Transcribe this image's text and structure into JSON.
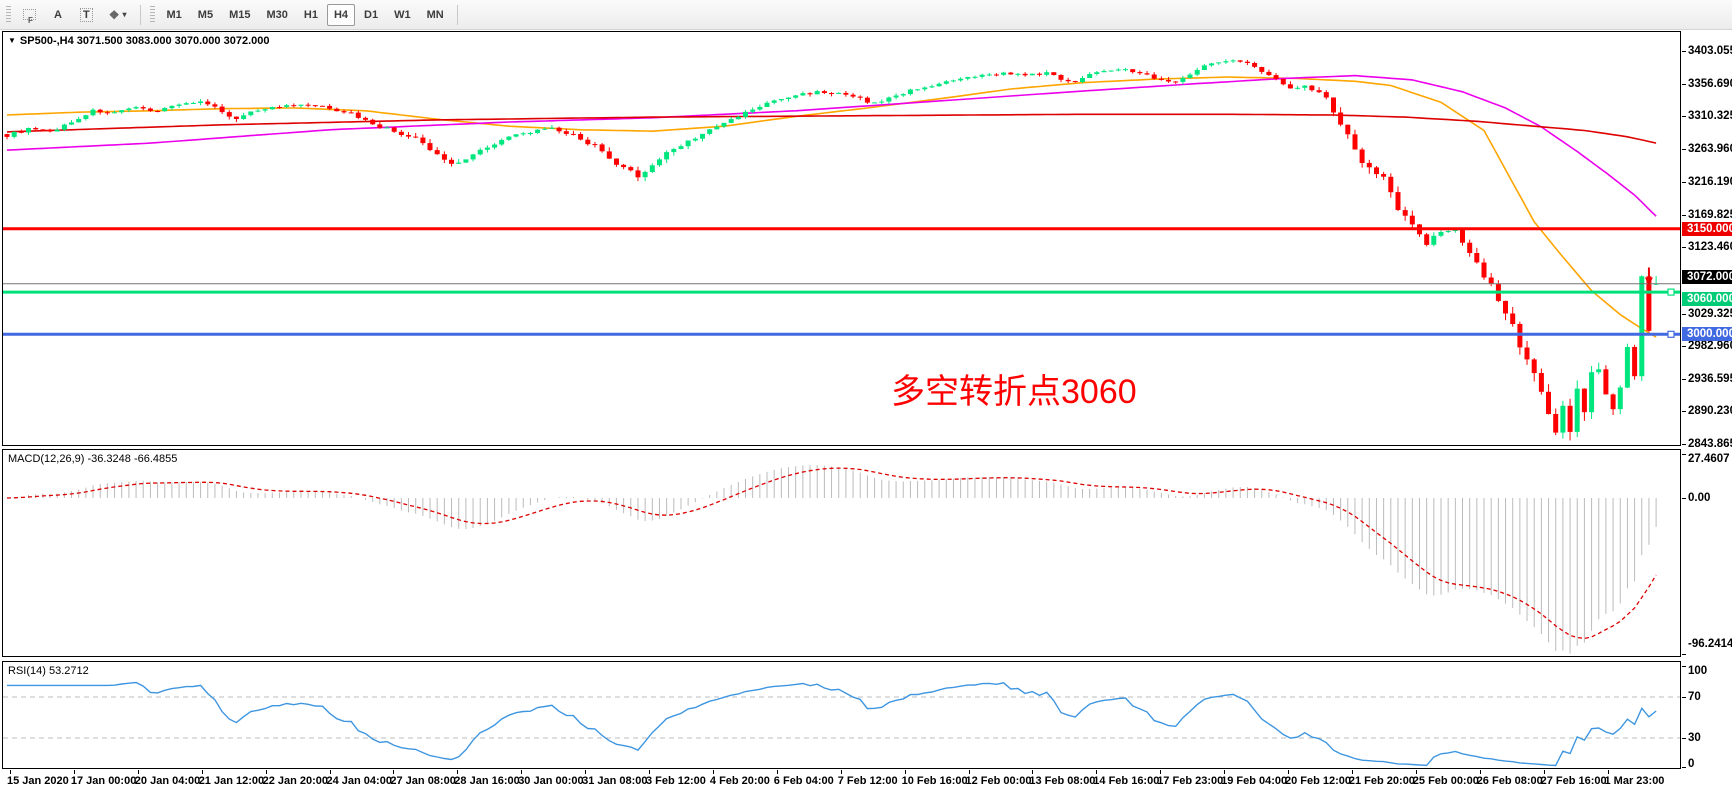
{
  "toolbar": {
    "icons": {
      "grid_f": "F",
      "text_label": "A",
      "text_box": "T",
      "arrows": "❖",
      "caret": "▼"
    },
    "timeframes": [
      "M1",
      "M5",
      "M15",
      "M30",
      "H1",
      "H4",
      "D1",
      "W1",
      "MN"
    ],
    "active_timeframe": "H4"
  },
  "chart": {
    "collapse_marker": "▼",
    "title_line": "SP500-,H4 3071.500 3083.000 3070.000 3072.000",
    "annotation": {
      "text": "多空转折点3060",
      "color": "#ff0000"
    }
  },
  "price_axis": {
    "ticks": [
      3403.055,
      3356.69,
      3310.325,
      3263.96,
      3216.19,
      3169.825,
      3123.46,
      3029.325,
      2982.96,
      2936.595,
      2890.23,
      2843.865
    ],
    "lines": [
      {
        "label": "3150.000",
        "value": 3150.0,
        "bg": "#ee0000",
        "line": "#ff0000",
        "width": 3,
        "handle": false,
        "align": "center"
      },
      {
        "label": "3072.000",
        "value": 3072.0,
        "bg": "#000000",
        "line": "#777777",
        "width": 1,
        "handle": false,
        "align": "above"
      },
      {
        "label": "3060.000",
        "value": 3060.0,
        "bg": "#00cc77",
        "line": "#00e07a",
        "width": 3,
        "handle": true,
        "align": "below"
      },
      {
        "label": "3000.000",
        "value": 3000.0,
        "bg": "#4169e1",
        "line": "#4169e1",
        "width": 3,
        "handle": true,
        "align": "center"
      }
    ]
  },
  "macd_pane": {
    "label": "MACD(12,26,9) -36.3248 -66.4855",
    "ticks": [
      {
        "label": "27.4607",
        "value": 27.4607
      },
      {
        "label": "0.00",
        "value": 0
      },
      {
        "label": "-96.2414",
        "value": -96.2414
      }
    ]
  },
  "rsi_pane": {
    "label": "RSI(14) 53.2712",
    "ticks": [
      {
        "label": "100",
        "value": 100
      },
      {
        "label": "70",
        "value": 70
      },
      {
        "label": "30",
        "value": 30
      },
      {
        "label": "0",
        "value": 0
      }
    ],
    "dashed_levels": [
      70,
      30
    ]
  },
  "time_axis": {
    "labels": [
      "15 Jan 2020",
      "17 Jan 00:00",
      "20 Jan 04:00",
      "21 Jan 12:00",
      "22 Jan 20:00",
      "24 Jan 04:00",
      "27 Jan 08:00",
      "28 Jan 16:00",
      "30 Jan 00:00",
      "31 Jan 08:00",
      "3 Feb 12:00",
      "4 Feb 20:00",
      "6 Feb 04:00",
      "7 Feb 12:00",
      "10 Feb 16:00",
      "12 Feb 00:00",
      "13 Feb 08:00",
      "14 Feb 16:00",
      "17 Feb 23:00",
      "19 Feb 04:00",
      "20 Feb 12:00",
      "21 Feb 20:00",
      "25 Feb 00:00",
      "26 Feb 08:00",
      "27 Feb 16:00",
      "1 Mar 23:00"
    ]
  },
  "chart_data": {
    "type": "candlestick",
    "symbol": "SP500-",
    "timeframe": "H4",
    "current_bar": {
      "open": 3071.5,
      "high": 3083.0,
      "low": 3070.0,
      "close": 3072.0
    },
    "bars_count": 231,
    "colors": {
      "up": "#00e67e",
      "down": "#ff0000",
      "macd_hist": "#bbbbbb",
      "macd_signal": "#dd0000",
      "rsi_line": "#3f96e0"
    },
    "close_anchors": [
      [
        0,
        3283,
        8
      ],
      [
        3,
        3292,
        7
      ],
      [
        6,
        3288,
        7
      ],
      [
        9,
        3302,
        7
      ],
      [
        12,
        3318,
        7
      ],
      [
        15,
        3315,
        6
      ],
      [
        18,
        3322,
        6
      ],
      [
        21,
        3318,
        6
      ],
      [
        24,
        3328,
        6
      ],
      [
        27,
        3330,
        7
      ],
      [
        30,
        3318,
        8
      ],
      [
        32,
        3305,
        9
      ],
      [
        34,
        3318,
        7
      ],
      [
        38,
        3324,
        6
      ],
      [
        42,
        3326,
        6
      ],
      [
        45,
        3322,
        7
      ],
      [
        48,
        3314,
        8
      ],
      [
        51,
        3300,
        10
      ],
      [
        54,
        3288,
        11
      ],
      [
        57,
        3278,
        11
      ],
      [
        60,
        3255,
        13
      ],
      [
        62,
        3243,
        13
      ],
      [
        64,
        3250,
        11
      ],
      [
        67,
        3268,
        10
      ],
      [
        70,
        3280,
        9
      ],
      [
        73,
        3288,
        8
      ],
      [
        76,
        3292,
        8
      ],
      [
        79,
        3283,
        9
      ],
      [
        82,
        3268,
        11
      ],
      [
        84,
        3248,
        12
      ],
      [
        86,
        3235,
        13
      ],
      [
        88,
        3226,
        13
      ],
      [
        90,
        3240,
        12
      ],
      [
        92,
        3258,
        11
      ],
      [
        95,
        3275,
        9
      ],
      [
        98,
        3290,
        9
      ],
      [
        101,
        3305,
        9
      ],
      [
        104,
        3320,
        8
      ],
      [
        107,
        3332,
        8
      ],
      [
        110,
        3340,
        7
      ],
      [
        113,
        3345,
        7
      ],
      [
        116,
        3342,
        7
      ],
      [
        119,
        3335,
        8
      ],
      [
        121,
        3328,
        8
      ],
      [
        124,
        3340,
        7
      ],
      [
        127,
        3350,
        7
      ],
      [
        130,
        3356,
        6
      ],
      [
        133,
        3363,
        6
      ],
      [
        136,
        3368,
        6
      ],
      [
        139,
        3372,
        6
      ],
      [
        142,
        3368,
        6
      ],
      [
        145,
        3372,
        6
      ],
      [
        147,
        3363,
        7
      ],
      [
        149,
        3360,
        7
      ],
      [
        152,
        3374,
        6
      ],
      [
        155,
        3378,
        5
      ],
      [
        158,
        3372,
        6
      ],
      [
        161,
        3362,
        8
      ],
      [
        163,
        3358,
        8
      ],
      [
        166,
        3378,
        7
      ],
      [
        169,
        3388,
        6
      ],
      [
        171,
        3391,
        6
      ],
      [
        173,
        3385,
        7
      ],
      [
        175,
        3374,
        8
      ],
      [
        177,
        3362,
        9
      ],
      [
        179,
        3350,
        10
      ],
      [
        181,
        3356,
        9
      ],
      [
        184,
        3337,
        10
      ],
      [
        186,
        3300,
        16
      ],
      [
        188,
        3262,
        18
      ],
      [
        190,
        3235,
        18
      ],
      [
        192,
        3225,
        16
      ],
      [
        194,
        3180,
        18
      ],
      [
        196,
        3155,
        16
      ],
      [
        198,
        3128,
        16
      ],
      [
        200,
        3145,
        14
      ],
      [
        202,
        3152,
        12
      ],
      [
        204,
        3116,
        16
      ],
      [
        206,
        3085,
        18
      ],
      [
        208,
        3050,
        20
      ],
      [
        210,
        3010,
        22
      ],
      [
        211,
        2978,
        22
      ],
      [
        213,
        2940,
        24
      ],
      [
        215,
        2890,
        26
      ],
      [
        216,
        2858,
        20
      ],
      [
        217,
        2900,
        26
      ],
      [
        218,
        2868,
        26
      ],
      [
        219,
        2925,
        24
      ],
      [
        220,
        2885,
        26
      ],
      [
        221,
        2945,
        24
      ],
      [
        222,
        2952,
        22
      ],
      [
        223,
        2915,
        22
      ],
      [
        224,
        2895,
        24
      ],
      [
        225,
        2930,
        22
      ],
      [
        226,
        2980,
        20
      ],
      [
        227,
        2945,
        20
      ],
      [
        228,
        3085,
        16
      ],
      [
        229,
        3005,
        14
      ],
      [
        230,
        3072,
        6
      ]
    ],
    "moving_averages": [
      {
        "name": "ma-fast-orange",
        "color": "#ffa500",
        "points": [
          [
            0,
            3312
          ],
          [
            10,
            3316
          ],
          [
            20,
            3318
          ],
          [
            30,
            3321
          ],
          [
            40,
            3322
          ],
          [
            50,
            3318
          ],
          [
            60,
            3306
          ],
          [
            70,
            3296
          ],
          [
            80,
            3291
          ],
          [
            90,
            3289
          ],
          [
            100,
            3296
          ],
          [
            110,
            3310
          ],
          [
            120,
            3322
          ],
          [
            130,
            3335
          ],
          [
            140,
            3349
          ],
          [
            150,
            3358
          ],
          [
            160,
            3363
          ],
          [
            170,
            3366
          ],
          [
            180,
            3364
          ],
          [
            188,
            3360
          ],
          [
            193,
            3354
          ],
          [
            200,
            3330
          ],
          [
            206,
            3290
          ],
          [
            213,
            3160
          ],
          [
            217,
            3110
          ],
          [
            221,
            3062
          ],
          [
            225,
            3028
          ],
          [
            228,
            3008
          ],
          [
            230,
            2996
          ]
        ]
      },
      {
        "name": "ma-mid-magenta",
        "color": "#ec00ec",
        "points": [
          [
            0,
            3262
          ],
          [
            20,
            3272
          ],
          [
            45,
            3291
          ],
          [
            70,
            3302
          ],
          [
            90,
            3308
          ],
          [
            110,
            3318
          ],
          [
            130,
            3332
          ],
          [
            150,
            3346
          ],
          [
            165,
            3356
          ],
          [
            178,
            3364
          ],
          [
            188,
            3368
          ],
          [
            196,
            3362
          ],
          [
            203,
            3345
          ],
          [
            209,
            3322
          ],
          [
            214,
            3295
          ],
          [
            219,
            3260
          ],
          [
            223,
            3230
          ],
          [
            227,
            3198
          ],
          [
            230,
            3168
          ]
        ]
      },
      {
        "name": "ma-slow-red",
        "color": "#dd0000",
        "points": [
          [
            0,
            3288
          ],
          [
            30,
            3298
          ],
          [
            60,
            3305
          ],
          [
            90,
            3309
          ],
          [
            120,
            3311
          ],
          [
            150,
            3313
          ],
          [
            170,
            3313
          ],
          [
            185,
            3312
          ],
          [
            195,
            3309
          ],
          [
            205,
            3303
          ],
          [
            213,
            3296
          ],
          [
            220,
            3290
          ],
          [
            226,
            3281
          ],
          [
            230,
            3272
          ]
        ]
      }
    ],
    "indicators": [
      {
        "name": "MACD",
        "params": [
          12,
          26,
          9
        ],
        "value": -36.3248,
        "signal": -66.4855,
        "max": 27.4607,
        "min": -96.2414
      },
      {
        "name": "RSI",
        "params": [
          14
        ],
        "value": 53.2712
      }
    ],
    "markers": [
      {
        "type": "sell-arrow",
        "bar": 229,
        "price": 3095,
        "color": "#ee0000"
      }
    ],
    "ylim": [
      2841,
      3429
    ],
    "grid": false
  }
}
